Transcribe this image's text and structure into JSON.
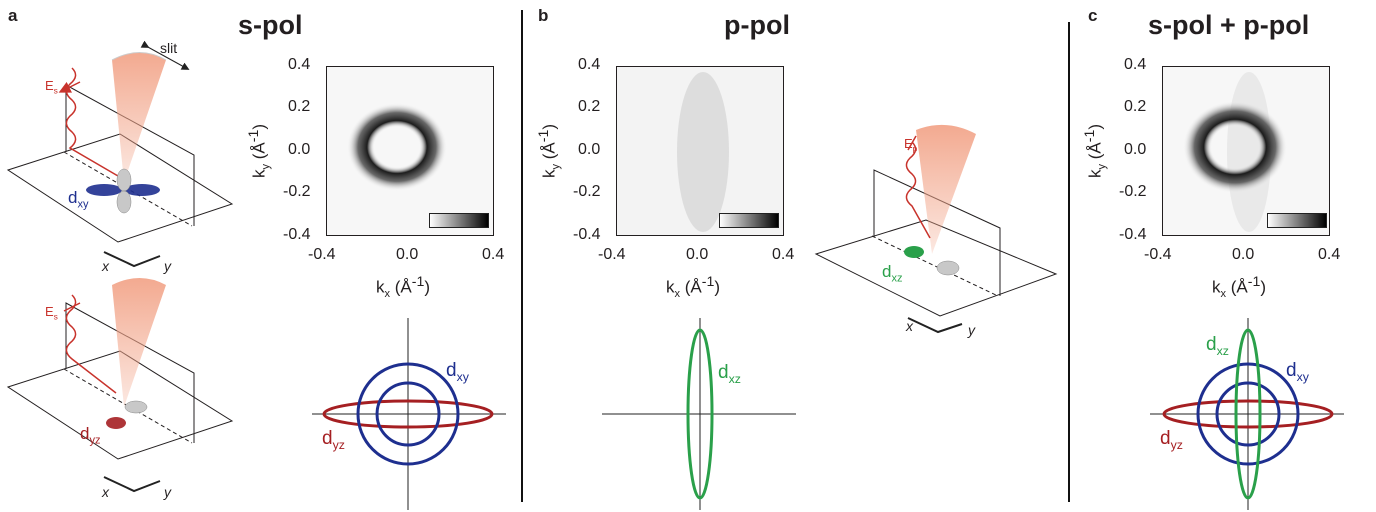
{
  "panels": [
    {
      "id": "a",
      "label": "a",
      "title": "s-pol"
    },
    {
      "id": "b",
      "label": "b",
      "title": "p-pol"
    },
    {
      "id": "c",
      "label": "c",
      "title": "s-pol + p-pol"
    }
  ],
  "axes": {
    "x_label": "k",
    "x_sub": "x",
    "y_label": "k",
    "y_sub": "y",
    "unit": "(Å",
    "unit_sup": "-1",
    "unit_close": ")",
    "x_ticks": [
      "-0.4",
      "0.0",
      "0.4"
    ],
    "y_ticks": [
      "0.4",
      "0.2",
      "0.0",
      "-0.2",
      "-0.4"
    ]
  },
  "geometry_labels": {
    "slit": "slit",
    "Es": "E",
    "Es_sub": "s",
    "Ep": "E",
    "Ep_sub": "p",
    "x": "x",
    "y": "y"
  },
  "orbitals": {
    "dxy": {
      "main": "d",
      "sub": "xy",
      "color": "#1e2f8f"
    },
    "dyz": {
      "main": "d",
      "sub": "yz",
      "color": "#a51f22"
    },
    "dxz": {
      "main": "d",
      "sub": "xz",
      "color": "#2aa04a"
    }
  },
  "colors": {
    "photon": "#c8332c",
    "cone": "#f2a58a",
    "blue": "#1e2f8f",
    "red": "#a51f22",
    "green": "#2aa04a"
  }
}
